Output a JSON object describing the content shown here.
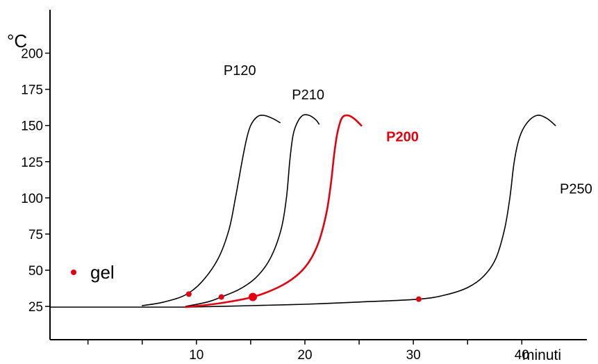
{
  "chart_data": {
    "type": "line",
    "title": "",
    "ylabel": "°C",
    "xlabel": "minuti",
    "xlim": [
      -3.5,
      46
    ],
    "ylim": [
      2,
      230
    ],
    "x_ticks_major": [
      10,
      20,
      30,
      40
    ],
    "x_tick_labels": [
      "10",
      "20",
      "30",
      "40"
    ],
    "x_ticks_minor": [
      0,
      5,
      15,
      25,
      35
    ],
    "y_ticks": [
      25,
      50,
      75,
      100,
      125,
      150,
      175,
      200
    ],
    "y_tick_labels": [
      "25",
      "50",
      "75",
      "100",
      "125",
      "150",
      "175",
      "200"
    ],
    "legend": {
      "label": "gel",
      "color": "#e3000f",
      "placement": "left"
    },
    "baseline": {
      "x": [
        -3.5,
        9
      ],
      "y": [
        24.5,
        24.5
      ]
    },
    "series": [
      {
        "name": "P120",
        "color": "#000000",
        "x": [
          5,
          7,
          9,
          10.5,
          12,
          13,
          13.6,
          14.2,
          14.6,
          15,
          15.6,
          16.2,
          17,
          17.7
        ],
        "y": [
          25.5,
          28,
          33,
          42,
          58,
          78,
          100,
          125,
          140,
          150,
          156,
          157,
          155,
          152
        ],
        "gel": {
          "x": 9.3,
          "y": 33.5
        },
        "label_pos": {
          "x": 14,
          "y": 185
        }
      },
      {
        "name": "P210",
        "color": "#000000",
        "x": [
          9,
          11,
          12.3,
          14,
          15.5,
          16.8,
          17.8,
          18.3,
          18.6,
          18.9,
          19.3,
          19.8,
          20.4,
          21,
          21.3
        ],
        "y": [
          25,
          28,
          31.5,
          37,
          45,
          58,
          78,
          100,
          125,
          143,
          152,
          157,
          157,
          154,
          151
        ],
        "gel": {
          "x": 12.3,
          "y": 31.5
        },
        "label_pos": {
          "x": 20.3,
          "y": 168
        }
      },
      {
        "name": "P200",
        "color": "#e3000f",
        "x": [
          9,
          12,
          15.2,
          17.5,
          19.2,
          20.4,
          21.3,
          22,
          22.4,
          22.7,
          23,
          23.4,
          23.9,
          24.5,
          25.2
        ],
        "y": [
          24.5,
          27,
          31.5,
          38,
          46,
          56,
          70,
          90,
          110,
          130,
          145,
          155,
          157,
          155,
          150
        ],
        "gel": {
          "x": 15.2,
          "y": 31.5
        },
        "label_pos": {
          "x": 29,
          "y": 139
        }
      },
      {
        "name": "P250",
        "color": "#000000",
        "x": [
          9,
          15,
          20,
          25,
          30.5,
          33,
          35,
          36.5,
          37.6,
          38.4,
          38.9,
          39.3,
          39.8,
          40.5,
          41.4,
          42.3,
          43.1
        ],
        "y": [
          24.5,
          25.5,
          26.5,
          28,
          30,
          33,
          38,
          46,
          58,
          78,
          100,
          125,
          142,
          152,
          157,
          155,
          150
        ],
        "gel": {
          "x": 30.5,
          "y": 30
        },
        "label_pos": {
          "x": 45,
          "y": 103
        }
      }
    ]
  }
}
